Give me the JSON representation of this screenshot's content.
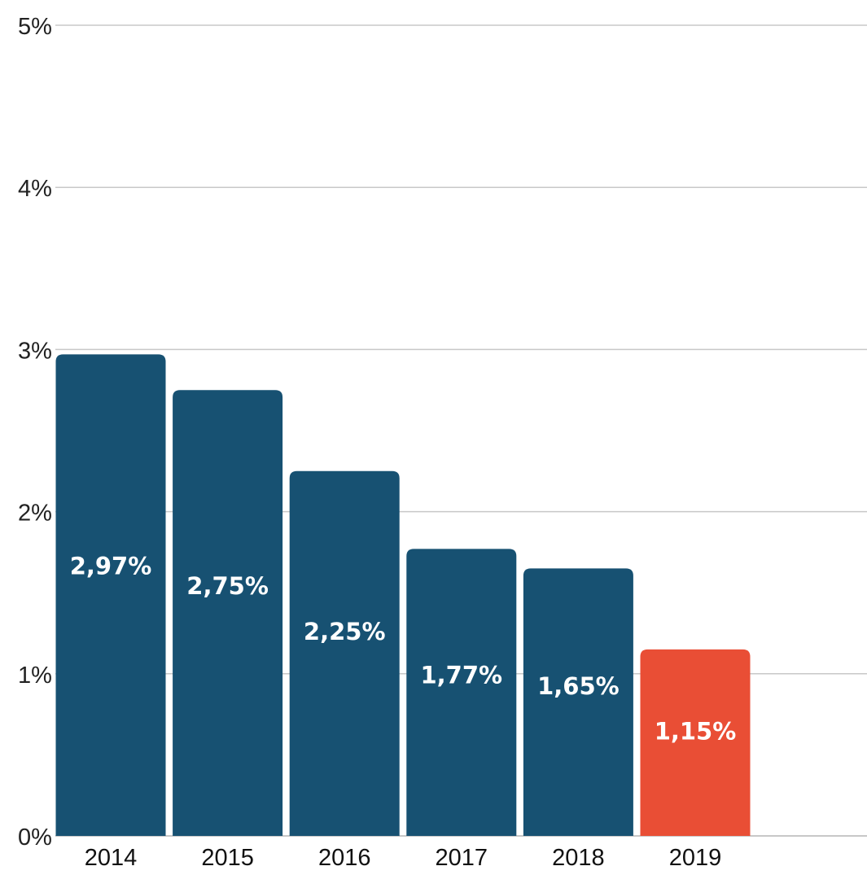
{
  "chart_data": {
    "type": "bar",
    "categories": [
      "2014",
      "2015",
      "2016",
      "2017",
      "2018",
      "2019"
    ],
    "values": [
      2.97,
      2.75,
      2.25,
      1.77,
      1.65,
      1.15
    ],
    "data_labels": [
      "2,97%",
      "2,75%",
      "2,25%",
      "1,77%",
      "1,65%",
      "1,15%"
    ],
    "bar_colors": [
      "#175172",
      "#175172",
      "#175172",
      "#175172",
      "#175172",
      "#E94E35"
    ],
    "highlight_color": "#E94E35",
    "base_color": "#175172",
    "ylim": [
      0,
      5
    ],
    "yticks": [
      0,
      1,
      2,
      3,
      4,
      5
    ],
    "ytick_labels": [
      "0%",
      "1%",
      "2%",
      "3%",
      "4%",
      "5%"
    ],
    "grid": true,
    "grid_color": "#c8c8c8",
    "title": "",
    "xlabel": "",
    "ylabel": ""
  }
}
